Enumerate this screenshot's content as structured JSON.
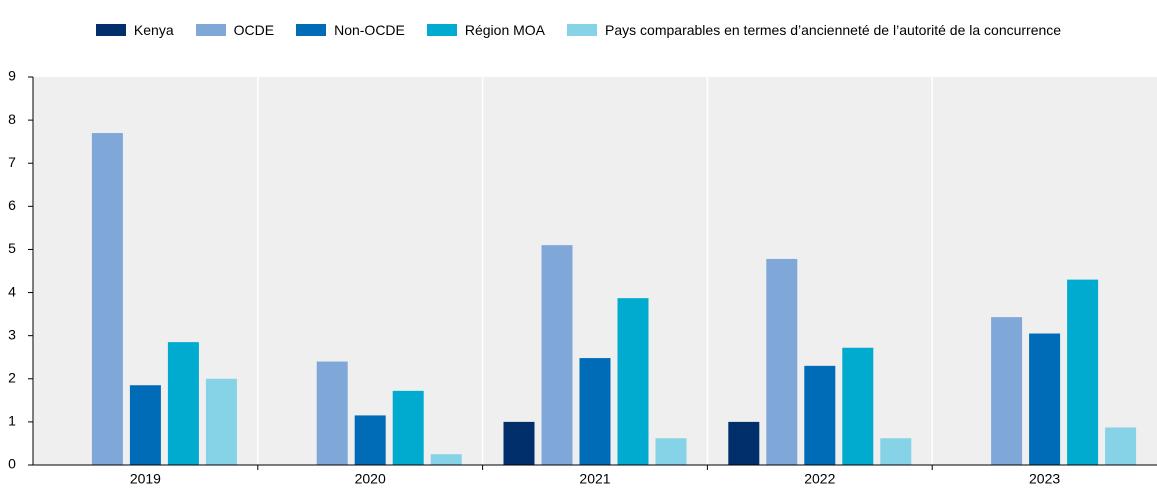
{
  "chart_data": {
    "type": "bar",
    "categories": [
      "2019",
      "2020",
      "2021",
      "2022",
      "2023"
    ],
    "series": [
      {
        "name": "Kenya",
        "color": "#002f6c",
        "values": [
          0,
          0,
          1,
          1,
          0
        ]
      },
      {
        "name": "OCDE",
        "color": "#7fa8d9",
        "values": [
          7.7,
          2.4,
          5.1,
          4.78,
          3.43
        ]
      },
      {
        "name": "Non-OCDE",
        "color": "#006bb6",
        "values": [
          1.85,
          1.15,
          2.48,
          2.3,
          3.05
        ]
      },
      {
        "name": "Région MOA",
        "color": "#00abcf",
        "values": [
          2.85,
          1.72,
          3.87,
          2.72,
          4.3
        ]
      },
      {
        "name": "Pays comparables en termes d’ancienneté de l’autorité de la concurrence",
        "color": "#86d3e7",
        "values": [
          2.0,
          0.25,
          0.62,
          0.62,
          0.87
        ]
      }
    ],
    "ylim": [
      0,
      9
    ],
    "yticks": [
      0,
      1,
      2,
      3,
      4,
      5,
      6,
      7,
      8,
      9
    ],
    "grid": false
  }
}
